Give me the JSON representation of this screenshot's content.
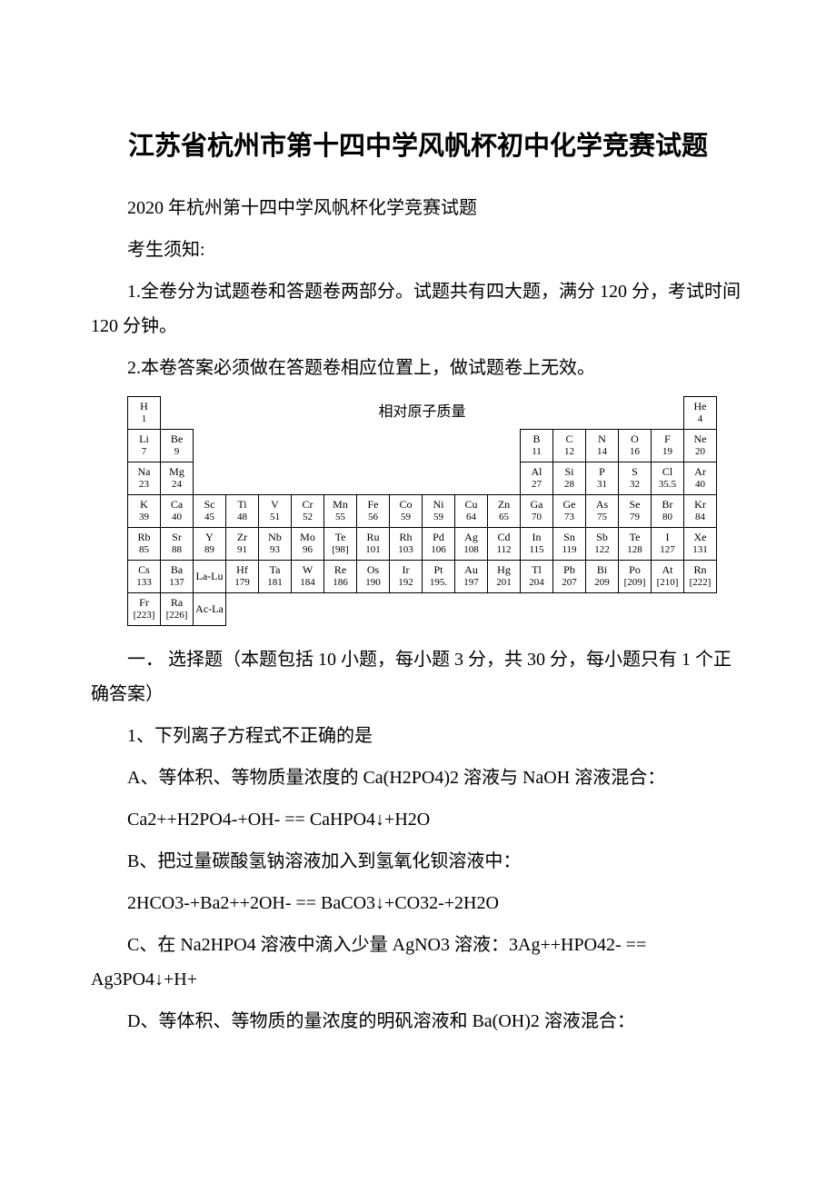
{
  "title": "江苏省杭州市第十四中学风帆杯初中化学竞赛试题",
  "subtitle": "2020 年杭州第十四中学风帆杯化学竞赛试题",
  "notice_heading": "考生须知:",
  "notice1": "1.全卷分为试题卷和答题卷两部分。试题共有四大题，满分 120 分，考试时间 120 分钟。",
  "notice2": "2.本卷答案必须做在答题卷相应位置上，做试题卷上无效。",
  "pt_title": "相对原子质量",
  "pt": {
    "r1c1": "H",
    "r1c1m": "1",
    "r1c18": "He",
    "r1c18m": "4",
    "r2c1": "Li",
    "r2c1m": "7",
    "r2c2": "Be",
    "r2c2m": "9",
    "r2c13": "B",
    "r2c13m": "11",
    "r2c14": "C",
    "r2c14m": "12",
    "r2c15": "N",
    "r2c15m": "14",
    "r2c16": "O",
    "r2c16m": "16",
    "r2c17": "F",
    "r2c17m": "19",
    "r2c18": "Ne",
    "r2c18m": "20",
    "r3c1": "Na",
    "r3c1m": "23",
    "r3c2": "Mg",
    "r3c2m": "24",
    "r3c13": "Al",
    "r3c13m": "27",
    "r3c14": "Si",
    "r3c14m": "28",
    "r3c15": "P",
    "r3c15m": "31",
    "r3c16": "S",
    "r3c16m": "32",
    "r3c17": "Cl",
    "r3c17m": "35.5",
    "r3c18": "Ar",
    "r3c18m": "40",
    "r4c1": "K",
    "r4c1m": "39",
    "r4c2": "Ca",
    "r4c2m": "40",
    "r4c3": "Sc",
    "r4c3m": "45",
    "r4c4": "Ti",
    "r4c4m": "48",
    "r4c5": "V",
    "r4c5m": "51",
    "r4c6": "Cr",
    "r4c6m": "52",
    "r4c7": "Mn",
    "r4c7m": "55",
    "r4c8": "Fe",
    "r4c8m": "56",
    "r4c9": "Co",
    "r4c9m": "59",
    "r4c10": "Ni",
    "r4c10m": "59",
    "r4c11": "Cu",
    "r4c11m": "64",
    "r4c12": "Zn",
    "r4c12m": "65",
    "r4c13": "Ga",
    "r4c13m": "70",
    "r4c14": "Ge",
    "r4c14m": "73",
    "r4c15": "As",
    "r4c15m": "75",
    "r4c16": "Se",
    "r4c16m": "79",
    "r4c17": "Br",
    "r4c17m": "80",
    "r4c18": "Kr",
    "r4c18m": "84",
    "r5c1": "Rb",
    "r5c1m": "85",
    "r5c2": "Sr",
    "r5c2m": "88",
    "r5c3": "Y",
    "r5c3m": "89",
    "r5c4": "Zr",
    "r5c4m": "91",
    "r5c5": "Nb",
    "r5c5m": "93",
    "r5c6": "Mo",
    "r5c6m": "96",
    "r5c7": "Te",
    "r5c7m": "[98]",
    "r5c8": "Ru",
    "r5c8m": "101",
    "r5c9": "Rh",
    "r5c9m": "103",
    "r5c10": "Pd",
    "r5c10m": "106",
    "r5c11": "Ag",
    "r5c11m": "108",
    "r5c12": "Cd",
    "r5c12m": "112",
    "r5c13": "In",
    "r5c13m": "115",
    "r5c14": "Sn",
    "r5c14m": "119",
    "r5c15": "Sb",
    "r5c15m": "122",
    "r5c16": "Te",
    "r5c16m": "128",
    "r5c17": "I",
    "r5c17m": "127",
    "r5c18": "Xe",
    "r5c18m": "131",
    "r6c1": "Cs",
    "r6c1m": "133",
    "r6c2": "Ba",
    "r6c2m": "137",
    "r6c3": "La-Lu",
    "r6c3m": "",
    "r6c4": "Hf",
    "r6c4m": "179",
    "r6c5": "Ta",
    "r6c5m": "181",
    "r6c6": "W",
    "r6c6m": "184",
    "r6c7": "Re",
    "r6c7m": "186",
    "r6c8": "Os",
    "r6c8m": "190",
    "r6c9": "Ir",
    "r6c9m": "192",
    "r6c10": "Pt",
    "r6c10m": "195.",
    "r6c11": "Au",
    "r6c11m": "197",
    "r6c12": "Hg",
    "r6c12m": "201",
    "r6c13": "Tl",
    "r6c13m": "204",
    "r6c14": "Pb",
    "r6c14m": "207",
    "r6c15": "Bi",
    "r6c15m": "209",
    "r6c16": "Po",
    "r6c16m": "[209]",
    "r6c17": "At",
    "r6c17m": "[210]",
    "r6c18": "Rn",
    "r6c18m": "[222]",
    "r7c1": "Fr",
    "r7c1m": "[223]",
    "r7c2": "Ra",
    "r7c2m": "[226]",
    "r7c3": "Ac-La",
    "r7c3m": ""
  },
  "section1": "一．  选择题（本题包括 10 小题，每小题 3 分，共 30 分，每小题只有 1 个正确答案）",
  "q1": "1、下列离子方程式不正确的是",
  "q1a": "A、等体积、等物质量浓度的 Ca(H2PO4)2 溶液与 NaOH 溶液混合：",
  "q1a_eq": " Ca2++H2PO4-+OH- == CaHPO4↓+H2O",
  "q1b": "B、把过量碳酸氢钠溶液加入到氢氧化钡溶液中：",
  "q1b_eq": " 2HCO3-+Ba2++2OH- == BaCO3↓+CO32-+2H2O",
  "q1c": "C、在 Na2HPO4 溶液中滴入少量 AgNO3 溶液：3Ag++HPO42- == Ag3PO4↓+H+",
  "q1d": "D、等体积、等物质的量浓度的明矾溶液和 Ba(OH)2 溶液混合："
}
